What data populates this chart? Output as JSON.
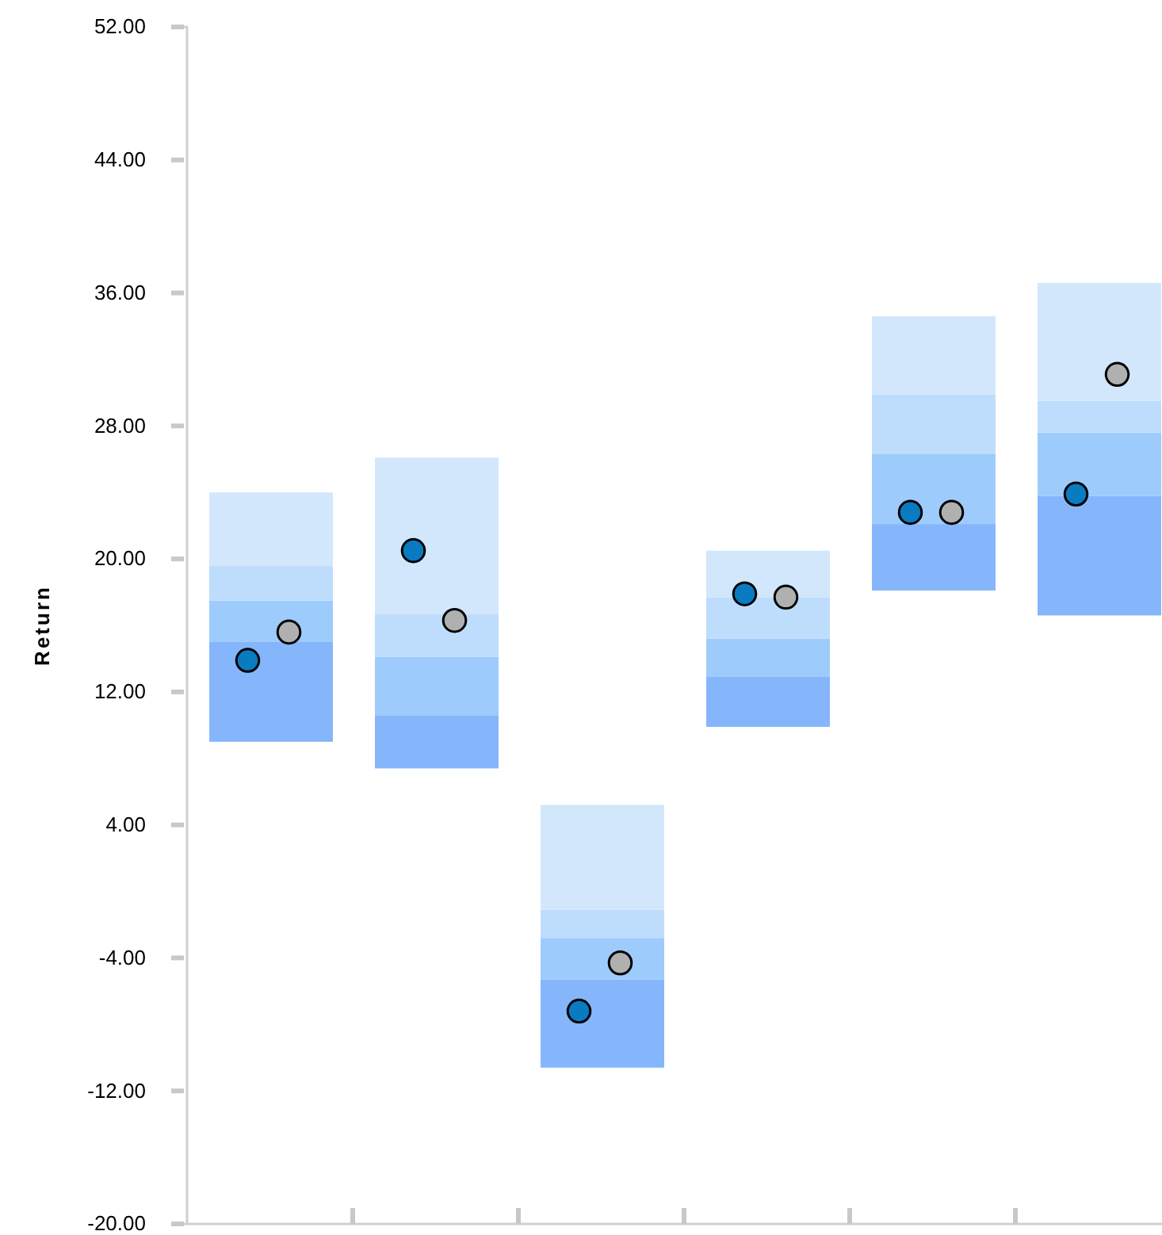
{
  "chart_data": {
    "type": "bar",
    "ylabel": "Return",
    "categories": [
      null,
      null,
      null,
      null,
      null,
      null
    ],
    "series": [
      {
        "color": "#85b6fc",
        "base": [
          9.0,
          7.4,
          -10.6,
          9.9,
          18.1,
          16.6
        ],
        "values": [
          6.0,
          3.2,
          5.3,
          3.0,
          4.0,
          7.2
        ]
      },
      {
        "color": "#9dcbfc",
        "base": [
          15.0,
          10.6,
          -5.3,
          12.9,
          22.1,
          23.8
        ],
        "values": [
          2.5,
          3.5,
          2.5,
          2.3,
          4.2,
          3.8
        ]
      },
      {
        "color": "#bedcfb",
        "base": [
          17.5,
          14.1,
          -2.8,
          15.2,
          26.3,
          27.6
        ],
        "values": [
          2.1,
          2.6,
          1.7,
          2.5,
          3.6,
          1.9
        ]
      },
      {
        "color": "#d2e7fc",
        "base": [
          19.6,
          16.7,
          -1.1,
          17.7,
          29.9,
          29.5
        ],
        "values": [
          4.4,
          9.4,
          6.3,
          2.8,
          4.7,
          7.1
        ]
      },
      {
        "type": "scatter",
        "color": "#0a7bc1",
        "values": [
          13.9,
          20.5,
          -7.2,
          17.9,
          22.8,
          23.9
        ]
      },
      {
        "type": "scatter",
        "color": "#b0b0b0",
        "values": [
          15.6,
          16.3,
          -4.3,
          17.7,
          22.8,
          31.1
        ]
      }
    ],
    "ylim": [
      -20,
      52
    ],
    "yticks": [
      {
        "value": -20,
        "label": "-20.00"
      },
      {
        "value": -12,
        "label": "-12.00"
      },
      {
        "value": -4,
        "label": "-4.00"
      },
      {
        "value": 4,
        "label": "4.00"
      },
      {
        "value": 12,
        "label": "12.00"
      },
      {
        "value": 20,
        "label": "20.00"
      },
      {
        "value": 28,
        "label": "28.00"
      },
      {
        "value": 36,
        "label": "36.00"
      },
      {
        "value": 44,
        "label": "44.00"
      },
      {
        "value": 52,
        "label": "52.00"
      }
    ],
    "grid": false,
    "marker": "circle"
  }
}
